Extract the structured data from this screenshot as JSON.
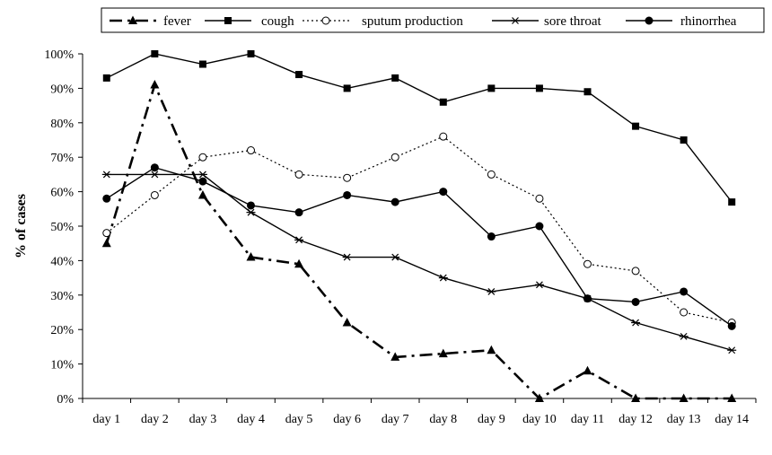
{
  "chart_data": {
    "type": "line",
    "title": "",
    "xlabel": "",
    "ylabel": "% of cases",
    "ylim": [
      0,
      100
    ],
    "y_ticks": [
      "0%",
      "10%",
      "20%",
      "30%",
      "40%",
      "50%",
      "60%",
      "70%",
      "80%",
      "90%",
      "100%"
    ],
    "grid": false,
    "legend_position": "top",
    "categories": [
      "day 1",
      "day 2",
      "day 3",
      "day 4",
      "day 5",
      "day 6",
      "day 7",
      "day 8",
      "day 9",
      "day 10",
      "day 11",
      "day 12",
      "day 13",
      "day 14"
    ],
    "series": [
      {
        "name": "fever",
        "marker": "triangle",
        "line_style": "dashdot",
        "values": [
          45,
          91,
          59,
          41,
          39,
          22,
          12,
          13,
          14,
          0,
          8,
          0,
          0,
          0
        ]
      },
      {
        "name": "cough",
        "marker": "square",
        "line_style": "solid",
        "values": [
          93,
          100,
          97,
          100,
          94,
          90,
          93,
          86,
          90,
          90,
          89,
          79,
          75,
          57
        ]
      },
      {
        "name": "sputum production",
        "marker": "open-circle",
        "line_style": "dotted",
        "values": [
          48,
          59,
          70,
          72,
          65,
          64,
          70,
          76,
          65,
          58,
          39,
          37,
          25,
          22
        ]
      },
      {
        "name": "sore throat",
        "marker": "asterisk",
        "line_style": "solid",
        "values": [
          65,
          65,
          65,
          54,
          46,
          41,
          41,
          35,
          31,
          33,
          29,
          22,
          18,
          14
        ]
      },
      {
        "name": "rhinorrhea",
        "marker": "filled-circle",
        "line_style": "solid",
        "values": [
          58,
          67,
          63,
          56,
          54,
          59,
          57,
          60,
          47,
          50,
          29,
          28,
          31,
          21
        ]
      }
    ]
  }
}
